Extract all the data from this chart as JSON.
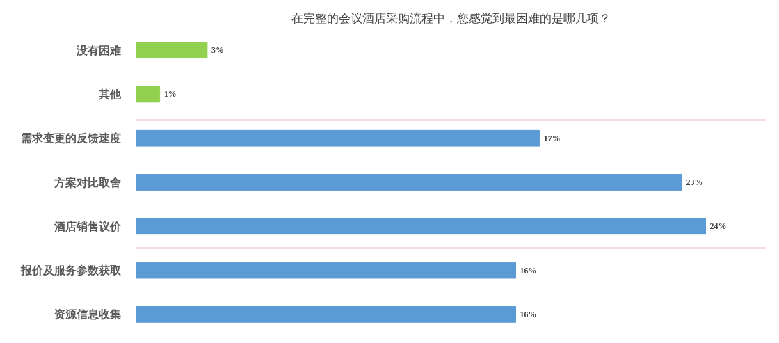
{
  "chart_data": {
    "type": "bar",
    "orientation": "horizontal",
    "title": "在完整的会议酒店采购流程中，您感觉到最困难的是哪几项？",
    "categories": [
      "没有困难",
      "其他",
      "需求变更的反馈速度",
      "方案对比取舍",
      "酒店销售议价",
      "报价及服务参数获取",
      "资源信息收集"
    ],
    "values": [
      3,
      1,
      17,
      23,
      24,
      16,
      16
    ],
    "value_labels": [
      "3%",
      "1%",
      "17%",
      "23%",
      "24%",
      "16%",
      "16%"
    ],
    "colors": [
      "#92d050",
      "#92d050",
      "#5b9bd5",
      "#5b9bd5",
      "#5b9bd5",
      "#5b9bd5",
      "#5b9bd5"
    ],
    "grid": false
  }
}
